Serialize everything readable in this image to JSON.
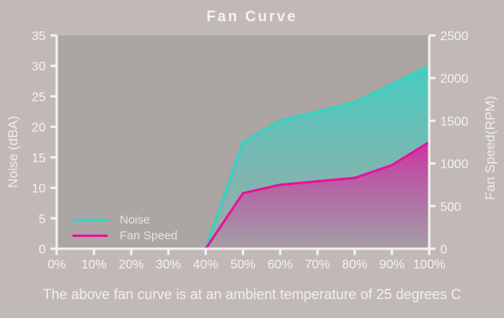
{
  "title": "Fan Curve",
  "caption": "The above fan curve is at an ambient temperature of 25 degrees C",
  "colors": {
    "background": "#c1b9b8",
    "plot_bg": "#aba5a3",
    "noise": "#2fd4c6",
    "fan_speed": "#e8119b",
    "axis": "#f4f0ef",
    "text": "#f6f2f1"
  },
  "chart_data": {
    "type": "area",
    "title": "Fan Curve",
    "x": [
      40,
      50,
      60,
      70,
      80,
      90,
      100
    ],
    "series": [
      {
        "name": "Noise",
        "axis": "left",
        "color": "#2fd4c6",
        "values": [
          0,
          17.5,
          21,
          22.5,
          24,
          27,
          30
        ]
      },
      {
        "name": "Fan Speed",
        "axis": "right",
        "color": "#e8119b",
        "values": [
          0,
          650,
          750,
          790,
          830,
          980,
          1250
        ]
      }
    ],
    "left_axis": {
      "label": "Noise (dBA)",
      "min": 0,
      "max": 35,
      "ticks": [
        0,
        5,
        10,
        15,
        20,
        25,
        30,
        35
      ]
    },
    "right_axis": {
      "label": "Fan Speed(RPM)",
      "min": 0,
      "max": 2500,
      "ticks": [
        0,
        500,
        1000,
        1500,
        2000,
        2500
      ]
    },
    "x_axis": {
      "min": 0,
      "max": 100,
      "ticks": [
        "0%",
        "10%",
        "20%",
        "30%",
        "40%",
        "50%",
        "60%",
        "70%",
        "80%",
        "90%",
        "100%"
      ]
    },
    "legend": {
      "position": "bottom-left"
    },
    "grid": "off"
  }
}
